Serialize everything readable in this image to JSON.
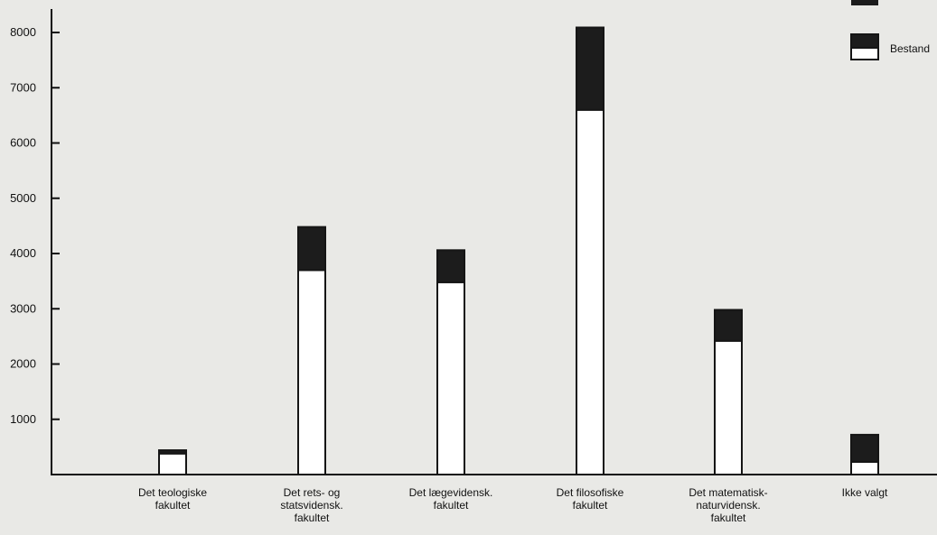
{
  "chart_data": {
    "type": "bar",
    "stacked": true,
    "categories": [
      [
        "Det teologiske",
        "fakultet"
      ],
      [
        "Det rets- og",
        "statsvidensk.",
        "fakultet"
      ],
      [
        "Det lægevidensk.",
        "fakultet"
      ],
      [
        "Det filosofiske",
        "fakultet"
      ],
      [
        "Det matematisk-",
        "naturvidensk.",
        "fakultet"
      ],
      [
        "Ikke valgt"
      ]
    ],
    "series": [
      {
        "name": "Bestand",
        "fill": "#ffffff",
        "values": [
          380,
          3700,
          3480,
          6600,
          2420,
          230
        ]
      },
      {
        "name": "",
        "fill": "#1c1c1c",
        "values": [
          60,
          780,
          580,
          1490,
          560,
          490
        ]
      }
    ],
    "ylim": [
      0,
      8000
    ],
    "yticks": [
      1000,
      2000,
      3000,
      4000,
      5000,
      6000,
      7000,
      8000
    ],
    "legend_placement": "top-right",
    "grid": false
  }
}
